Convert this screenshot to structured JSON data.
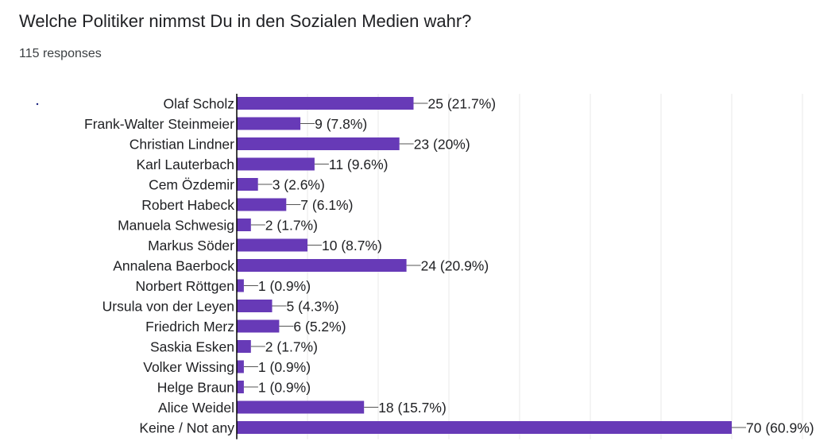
{
  "header": {
    "title": "Welche Politiker nimmst Du in den Sozialen Medien wahr?",
    "responses": "115 responses"
  },
  "colors": {
    "bar": "#673ab7",
    "grid": "#e8e8e8",
    "axis": "#000000",
    "text": "#202124"
  },
  "chart_data": {
    "type": "bar",
    "orientation": "horizontal",
    "title": "Welche Politiker nimmst Du in den Sozialen Medien wahr?",
    "categories": [
      "Olaf Scholz",
      "Frank-Walter Steinmeier",
      "Christian Lindner",
      "Karl Lauterbach",
      "Cem Özdemir",
      "Robert Habeck",
      "Manuela Schwesig",
      "Markus Söder",
      "Annalena Baerbock",
      "Norbert Röttgen",
      "Ursula von der Leyen",
      "Friedrich Merz",
      "Saskia Esken",
      "Volker Wissing",
      "Helge Braun",
      "Alice Weidel",
      "Keine / Not any"
    ],
    "values": [
      25,
      9,
      23,
      11,
      3,
      7,
      2,
      10,
      24,
      1,
      5,
      6,
      2,
      1,
      1,
      18,
      70
    ],
    "labels": [
      "25 (21.7%)",
      "9 (7.8%)",
      "23 (20%)",
      "11 (9.6%)",
      "3 (2.6%)",
      "7 (6.1%)",
      "2 (1.7%)",
      "10 (8.7%)",
      "24 (20.9%)",
      "1 (0.9%)",
      "5 (4.3%)",
      "6 (5.2%)",
      "2 (1.7%)",
      "1 (0.9%)",
      "1 (0.9%)",
      "18 (15.7%)",
      "70 (60.9%)"
    ],
    "xlim": [
      0,
      80
    ],
    "grid": true,
    "legend": "none"
  }
}
